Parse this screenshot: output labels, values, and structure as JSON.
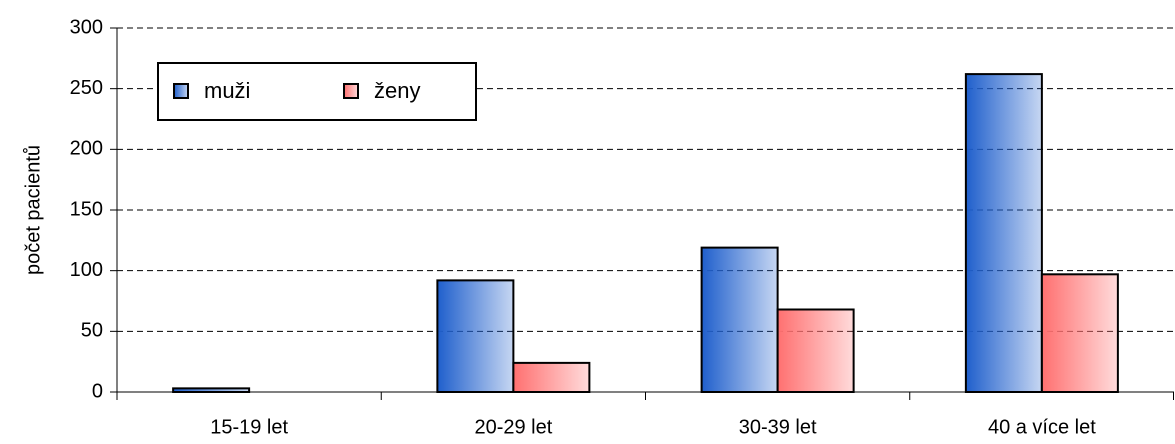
{
  "chart_data": {
    "type": "bar",
    "y_label": "počet pacientů",
    "categories": [
      "15-19 let",
      "20-29 let",
      "30-39 let",
      "40 a více let"
    ],
    "series": [
      {
        "name": "muži",
        "color": "#1f5fcc",
        "values": [
          3,
          92,
          119,
          262
        ]
      },
      {
        "name": "ženy",
        "color": "#ff7070",
        "values": [
          0,
          24,
          68,
          97
        ]
      }
    ],
    "ylim": [
      0,
      300
    ],
    "yticks": [
      0,
      50,
      100,
      150,
      200,
      250,
      300
    ],
    "grid": true,
    "legend": "upper left"
  }
}
